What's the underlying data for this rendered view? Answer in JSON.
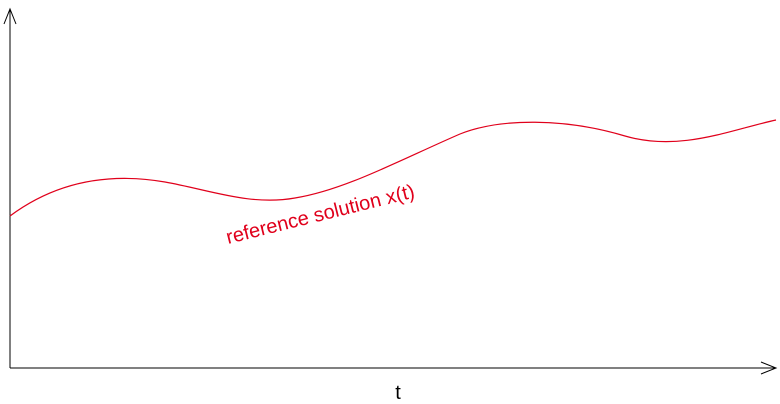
{
  "axes": {
    "x_label": "t"
  },
  "curve": {
    "label": "reference solution x(t)",
    "color": "#e0001b"
  }
}
